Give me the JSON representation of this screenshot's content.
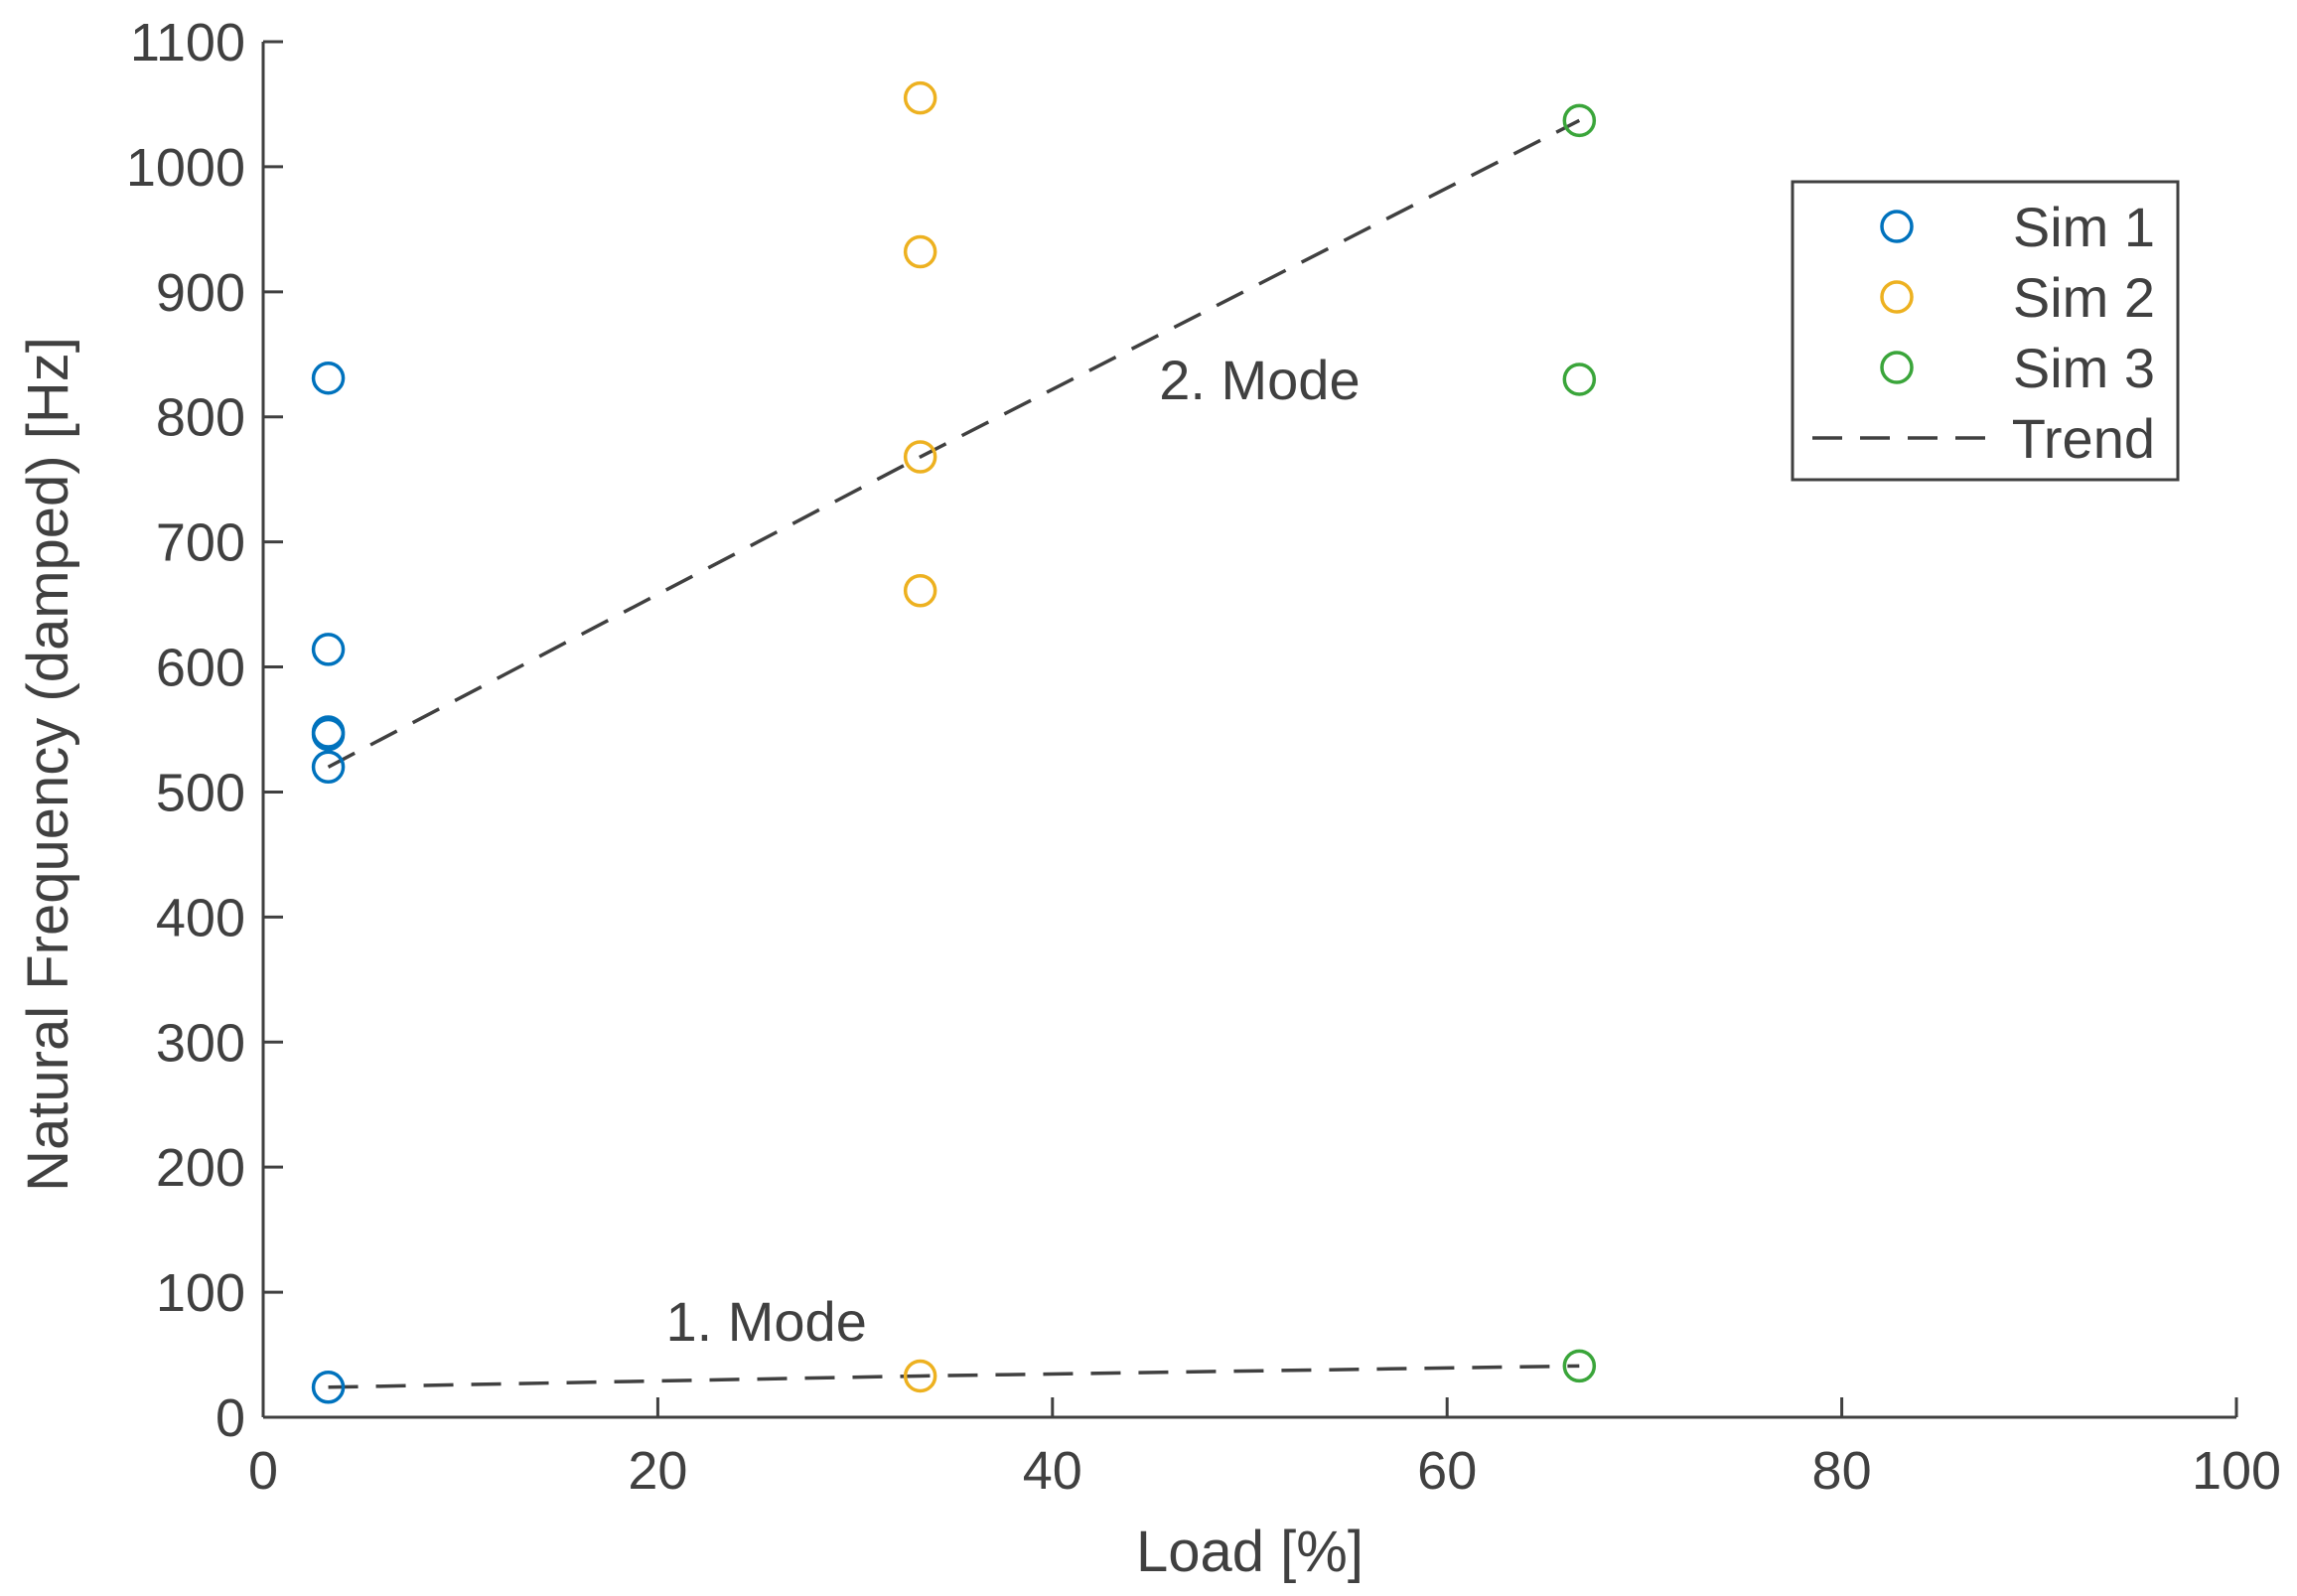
{
  "chart_data": {
    "type": "scatter",
    "xlabel": "Load [%]",
    "ylabel": "Natural Frequency (damped) [Hz]",
    "xlim": [
      0,
      100
    ],
    "ylim": [
      0,
      1100
    ],
    "xticks": [
      0,
      20,
      40,
      60,
      80,
      100
    ],
    "yticks": [
      0,
      100,
      200,
      300,
      400,
      500,
      600,
      700,
      800,
      900,
      1000,
      1100
    ],
    "grid": false,
    "legend_position": "top-right",
    "series": [
      {
        "name": "Sim 1",
        "color": "#0072BD",
        "marker": "circle-open",
        "points": [
          [
            3.3,
            24
          ],
          [
            3.3,
            520
          ],
          [
            3.3,
            546
          ],
          [
            3.3,
            548
          ],
          [
            3.3,
            614
          ],
          [
            3.3,
            831
          ]
        ]
      },
      {
        "name": "Sim 2",
        "color": "#EDB120",
        "marker": "circle-open",
        "points": [
          [
            33.3,
            33
          ],
          [
            33.3,
            661
          ],
          [
            33.3,
            768
          ],
          [
            33.3,
            932
          ],
          [
            33.3,
            1055
          ]
        ]
      },
      {
        "name": "Sim 3",
        "color": "#3AA53A",
        "marker": "circle-open",
        "points": [
          [
            66.7,
            41
          ],
          [
            66.7,
            830
          ],
          [
            66.7,
            1037
          ]
        ]
      }
    ],
    "trend": {
      "name": "Trend",
      "color": "#404040",
      "style": "dashed",
      "lines": [
        [
          [
            3.3,
            24
          ],
          [
            33.3,
            33
          ],
          [
            66.7,
            41
          ]
        ],
        [
          [
            3.3,
            520
          ],
          [
            33.3,
            768
          ],
          [
            66.7,
            1037
          ]
        ]
      ]
    },
    "annotations": [
      {
        "text": "2. Mode",
        "x": 50.5,
        "y": 830
      },
      {
        "text": "1. Mode",
        "x": 25.5,
        "y": 77
      }
    ]
  }
}
